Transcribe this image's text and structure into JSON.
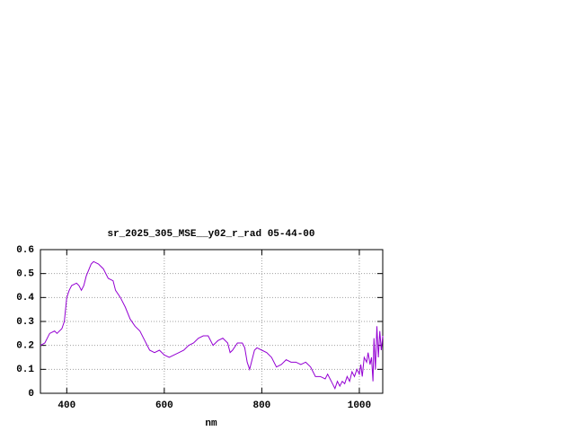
{
  "chart_data": {
    "type": "line",
    "title": "sr_2025_305_MSE__y02_r_rad 05-44-00",
    "x_label": "nm",
    "x": [
      346,
      355,
      365,
      375,
      380,
      390,
      395,
      400,
      405,
      410,
      420,
      425,
      430,
      435,
      440,
      450,
      455,
      465,
      475,
      485,
      495,
      500,
      510,
      520,
      530,
      540,
      550,
      560,
      570,
      580,
      590,
      600,
      610,
      620,
      630,
      640,
      650,
      660,
      670,
      680,
      690,
      700,
      710,
      720,
      730,
      735,
      740,
      750,
      760,
      765,
      770,
      775,
      780,
      785,
      790,
      800,
      810,
      820,
      830,
      840,
      850,
      860,
      870,
      880,
      890,
      900,
      910,
      920,
      930,
      935,
      940,
      945,
      950,
      955,
      960,
      965,
      970,
      975,
      980,
      985,
      990,
      995,
      1000,
      1003,
      1006,
      1010,
      1015,
      1018,
      1022,
      1025,
      1028,
      1030,
      1033,
      1036,
      1039,
      1042,
      1045,
      1048
    ],
    "series": [
      {
        "color": "#9400d3",
        "values": [
          0.2,
          0.21,
          0.25,
          0.26,
          0.25,
          0.27,
          0.3,
          0.4,
          0.43,
          0.45,
          0.46,
          0.45,
          0.43,
          0.45,
          0.49,
          0.54,
          0.55,
          0.54,
          0.52,
          0.48,
          0.47,
          0.43,
          0.4,
          0.36,
          0.31,
          0.28,
          0.26,
          0.22,
          0.18,
          0.17,
          0.18,
          0.16,
          0.15,
          0.16,
          0.17,
          0.18,
          0.2,
          0.21,
          0.23,
          0.24,
          0.24,
          0.2,
          0.22,
          0.23,
          0.21,
          0.17,
          0.18,
          0.21,
          0.21,
          0.19,
          0.13,
          0.1,
          0.14,
          0.18,
          0.19,
          0.18,
          0.17,
          0.15,
          0.11,
          0.12,
          0.14,
          0.13,
          0.13,
          0.12,
          0.13,
          0.11,
          0.07,
          0.07,
          0.06,
          0.08,
          0.06,
          0.04,
          0.02,
          0.05,
          0.03,
          0.05,
          0.04,
          0.07,
          0.05,
          0.09,
          0.07,
          0.1,
          0.08,
          0.12,
          0.07,
          0.15,
          0.13,
          0.17,
          0.12,
          0.15,
          0.05,
          0.23,
          0.1,
          0.28,
          0.15,
          0.26,
          0.18,
          0.24
        ]
      }
    ],
    "xlim": [
      346,
      1048
    ],
    "ylim": [
      0,
      0.6
    ],
    "xticks": [
      400,
      600,
      800,
      1000
    ],
    "yticks": [
      0,
      0.1,
      0.2,
      0.3,
      0.4,
      0.5,
      0.6
    ],
    "grid": true
  }
}
